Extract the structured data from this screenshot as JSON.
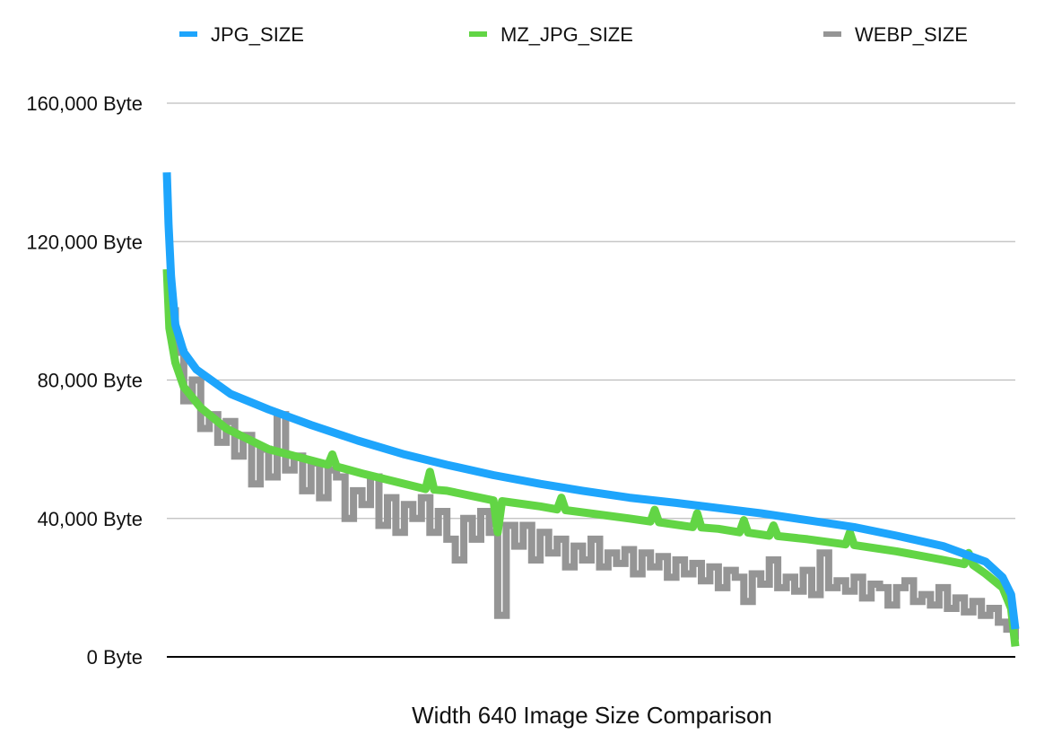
{
  "chart_data": {
    "type": "line",
    "title": "Width 640 Image Size Comparison",
    "xlabel": "",
    "ylabel": "",
    "ylim": [
      0,
      160000
    ],
    "xlim": [
      0,
      1000
    ],
    "yticks": [
      0,
      40000,
      80000,
      120000,
      160000
    ],
    "ytick_labels": [
      "0 Byte",
      "40,000 Byte",
      "80,000 Byte",
      "120,000 Byte",
      "160,000 Byte"
    ],
    "grid": true,
    "legend_position": "top",
    "series": [
      {
        "name": "JPG_SIZE",
        "color": "#1ea5fc",
        "x": [
          0,
          2,
          5,
          10,
          20,
          35,
          75,
          120,
          170,
          225,
          280,
          330,
          385,
          440,
          490,
          545,
          600,
          650,
          700,
          755,
          810,
          860,
          915,
          965,
          985,
          995,
          1000
        ],
        "values": [
          140000,
          125000,
          110000,
          96000,
          88000,
          83000,
          76000,
          71500,
          67000,
          62500,
          58500,
          55500,
          52500,
          50000,
          48000,
          46000,
          44500,
          43000,
          41500,
          39500,
          37500,
          35000,
          32000,
          27500,
          23000,
          18000,
          8000
        ]
      },
      {
        "name": "MZ_JPG_SIZE",
        "color": "#62d545",
        "x": [
          0,
          3,
          10,
          20,
          40,
          70,
          120,
          190,
          195,
          200,
          230,
          305,
          310,
          315,
          330,
          385,
          390,
          395,
          440,
          460,
          465,
          470,
          545,
          570,
          575,
          580,
          620,
          625,
          630,
          650,
          675,
          680,
          685,
          710,
          715,
          720,
          755,
          800,
          805,
          810,
          860,
          915,
          940,
          945,
          950,
          965,
          985,
          995,
          1000
        ],
        "values": [
          112000,
          95000,
          85000,
          78000,
          72000,
          66000,
          60000,
          55500,
          58500,
          55000,
          53000,
          48500,
          53500,
          48300,
          48000,
          45200,
          36000,
          45000,
          43500,
          42600,
          46000,
          42400,
          40000,
          39100,
          42500,
          38900,
          37500,
          41500,
          37400,
          37000,
          36000,
          39500,
          35900,
          35000,
          38000,
          34900,
          34000,
          32500,
          36000,
          32300,
          30500,
          28000,
          26800,
          30000,
          26600,
          24000,
          20000,
          14000,
          3000
        ]
      },
      {
        "name": "WEBP_SIZE",
        "color": "#959595",
        "x": [
          0,
          10,
          20,
          30,
          40,
          50,
          60,
          70,
          80,
          90,
          100,
          110,
          120,
          130,
          140,
          150,
          160,
          170,
          180,
          190,
          200,
          210,
          220,
          230,
          240,
          250,
          260,
          270,
          280,
          290,
          300,
          310,
          320,
          330,
          340,
          350,
          360,
          370,
          380,
          390,
          400,
          410,
          420,
          430,
          440,
          450,
          460,
          470,
          480,
          490,
          500,
          510,
          520,
          530,
          540,
          550,
          560,
          570,
          580,
          590,
          600,
          610,
          620,
          630,
          640,
          650,
          660,
          670,
          680,
          690,
          700,
          710,
          720,
          730,
          740,
          750,
          760,
          770,
          780,
          790,
          800,
          810,
          820,
          830,
          840,
          850,
          860,
          870,
          880,
          890,
          900,
          910,
          920,
          930,
          940,
          950,
          960,
          970,
          980,
          990,
          1000
        ],
        "values": [
          100000,
          88000,
          74000,
          80000,
          66000,
          70000,
          62000,
          68000,
          58000,
          64000,
          50000,
          60000,
          52000,
          70000,
          54000,
          58000,
          48000,
          56000,
          46000,
          54000,
          52000,
          40000,
          48000,
          44000,
          52000,
          38000,
          46000,
          36000,
          44000,
          40000,
          46000,
          36000,
          42000,
          34000,
          28000,
          40000,
          34000,
          42000,
          36000,
          12000,
          38000,
          32000,
          38000,
          28000,
          36000,
          30000,
          34000,
          26000,
          32000,
          28000,
          34000,
          26000,
          30000,
          27000,
          31000,
          24000,
          30000,
          26000,
          29000,
          23000,
          28000,
          24000,
          27000,
          22000,
          26000,
          20000,
          25000,
          23000,
          16000,
          24000,
          21000,
          28000,
          20000,
          23000,
          19000,
          25000,
          18000,
          30000,
          20000,
          22000,
          19000,
          23000,
          17000,
          21000,
          20000,
          15000,
          20000,
          22000,
          16000,
          18000,
          15000,
          20000,
          14000,
          17000,
          13000,
          16000,
          12000,
          14000,
          10000,
          8000,
          5000
        ]
      }
    ]
  }
}
